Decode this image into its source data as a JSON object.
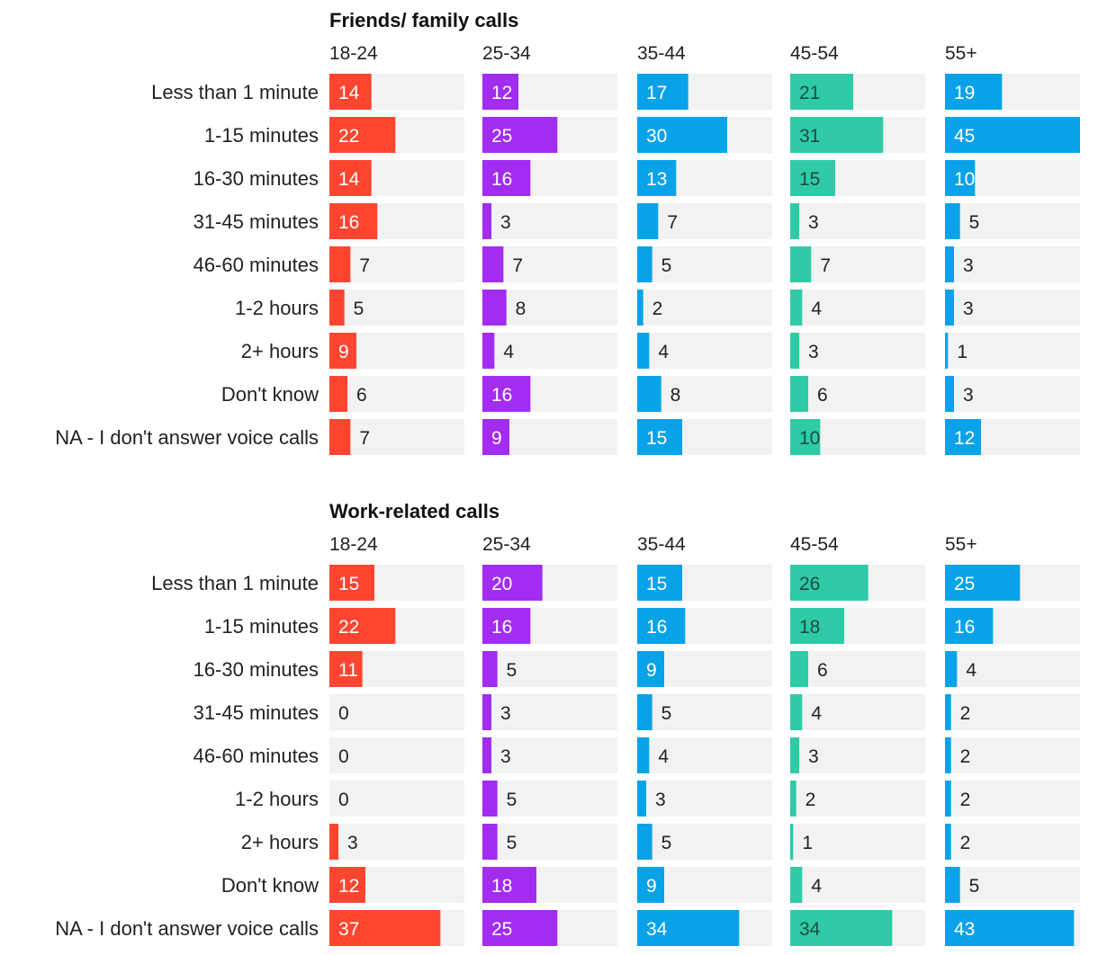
{
  "chart_data": [
    {
      "type": "bar",
      "title": "Friends/ family calls",
      "categories": [
        "Less than 1 minute",
        "1-15 minutes",
        "16-30 minutes",
        "31-45 minutes",
        "46-60 minutes",
        "1-2 hours",
        "2+ hours",
        "Don't know",
        "NA - I don't answer voice calls"
      ],
      "xlim": [
        0,
        45
      ],
      "series": [
        {
          "name": "18-24",
          "color": "#ff4530",
          "values": [
            14,
            22,
            14,
            16,
            7,
            5,
            9,
            6,
            7
          ]
        },
        {
          "name": "25-34",
          "color": "#a22cf0",
          "values": [
            12,
            25,
            16,
            3,
            7,
            8,
            4,
            16,
            9
          ]
        },
        {
          "name": "35-44",
          "color": "#08a2e8",
          "values": [
            17,
            30,
            13,
            7,
            5,
            2,
            4,
            8,
            15
          ]
        },
        {
          "name": "45-54",
          "color": "#2ecba6",
          "values": [
            21,
            31,
            15,
            3,
            7,
            4,
            3,
            6,
            10
          ]
        },
        {
          "name": "55+",
          "color": "#08a2e8",
          "values": [
            19,
            45,
            10,
            5,
            3,
            3,
            1,
            3,
            12
          ]
        }
      ]
    },
    {
      "type": "bar",
      "title": "Work-related calls",
      "categories": [
        "Less than 1 minute",
        "1-15 minutes",
        "16-30 minutes",
        "31-45 minutes",
        "46-60 minutes",
        "1-2 hours",
        "2+ hours",
        "Don't know",
        "NA - I don't answer voice calls"
      ],
      "xlim": [
        0,
        45
      ],
      "series": [
        {
          "name": "18-24",
          "color": "#ff4530",
          "values": [
            15,
            22,
            11,
            0,
            0,
            0,
            3,
            12,
            37
          ]
        },
        {
          "name": "25-34",
          "color": "#a22cf0",
          "values": [
            20,
            16,
            5,
            3,
            3,
            5,
            5,
            18,
            25
          ]
        },
        {
          "name": "35-44",
          "color": "#08a2e8",
          "values": [
            15,
            16,
            9,
            5,
            4,
            3,
            5,
            9,
            34
          ]
        },
        {
          "name": "45-54",
          "color": "#2ecba6",
          "values": [
            26,
            18,
            6,
            4,
            3,
            2,
            1,
            4,
            34
          ]
        },
        {
          "name": "55+",
          "color": "#08a2e8",
          "values": [
            25,
            16,
            4,
            2,
            2,
            2,
            2,
            5,
            43
          ]
        }
      ]
    }
  ],
  "colors": {
    "track": "#f2f2f2",
    "inside_label": "#ffffff",
    "outside_label": "#222222",
    "label_on_teal": "#1f4a40"
  }
}
